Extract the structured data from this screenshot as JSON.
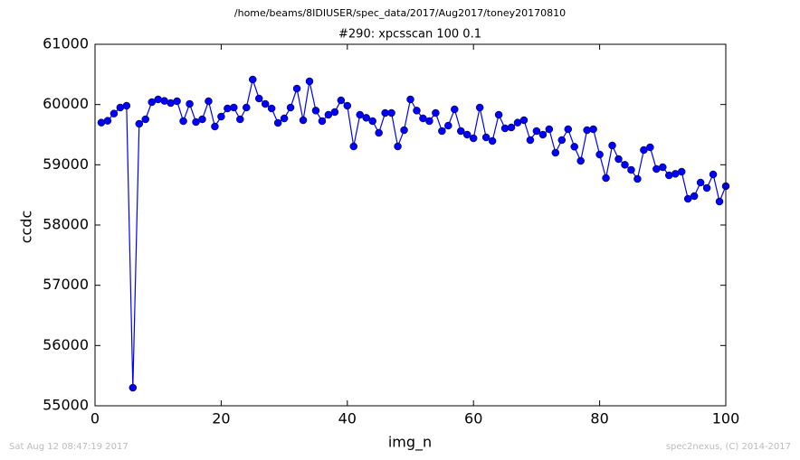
{
  "chart_data": {
    "type": "line",
    "title": "/home/beams/8IDIUSER/spec_data/2017/Aug2017/toney20170810",
    "subtitle": "#290: xpcsscan 100 0.1",
    "x_label": "img_n",
    "y_label": "ccdc",
    "timestamp": "Sat Aug 12 08:47:19 2017",
    "credit": "spec2nexus, (C) 2014-2017",
    "xlim": [
      0,
      100
    ],
    "xticks": [
      0,
      20,
      40,
      60,
      80,
      100
    ],
    "ylim": [
      55000,
      61000
    ],
    "yticks": [
      55000,
      56000,
      57000,
      58000,
      59000,
      60000,
      61000
    ],
    "grid": false,
    "x": [
      1,
      2,
      3,
      4,
      5,
      6,
      7,
      8,
      9,
      10,
      11,
      12,
      13,
      14,
      15,
      16,
      17,
      18,
      19,
      20,
      21,
      22,
      23,
      24,
      25,
      26,
      27,
      28,
      29,
      30,
      31,
      32,
      33,
      34,
      35,
      36,
      37,
      38,
      39,
      40,
      41,
      42,
      43,
      44,
      45,
      46,
      47,
      48,
      49,
      50,
      51,
      52,
      53,
      54,
      55,
      56,
      57,
      58,
      59,
      60,
      61,
      62,
      63,
      64,
      65,
      66,
      67,
      68,
      69,
      70,
      71,
      72,
      73,
      74,
      75,
      76,
      77,
      78,
      79,
      80,
      81,
      82,
      83,
      84,
      85,
      86,
      87,
      88,
      89,
      90,
      91,
      92,
      93,
      94,
      95,
      96,
      97,
      98,
      99,
      100
    ],
    "series": [
      {
        "name": "ccdc",
        "color": "#0000ff",
        "values": [
          59700,
          59730,
          59850,
          59950,
          59980,
          55300,
          59680,
          59755,
          60040,
          60085,
          60060,
          60025,
          60055,
          59725,
          60010,
          59710,
          59755,
          60055,
          59635,
          59800,
          59935,
          59950,
          59755,
          59950,
          60415,
          60100,
          60010,
          59935,
          59695,
          59770,
          59950,
          60265,
          59740,
          60385,
          59900,
          59725,
          59830,
          59875,
          60070,
          59980,
          59305,
          59830,
          59780,
          59725,
          59530,
          59860,
          59860,
          59305,
          59575,
          60085,
          59900,
          59770,
          59725,
          59860,
          59560,
          59650,
          59920,
          59560,
          59500,
          59440,
          59950,
          59455,
          59395,
          59830,
          59605,
          59620,
          59700,
          59740,
          59410,
          59560,
          59500,
          59590,
          59200,
          59410,
          59590,
          59300,
          59065,
          59575,
          59590,
          59170,
          58780,
          59320,
          59095,
          59000,
          58915,
          58765,
          59245,
          59290,
          58930,
          58960,
          58825,
          58850,
          58885,
          58435,
          58480,
          58705,
          58615,
          58840,
          58390,
          58645
        ]
      }
    ]
  }
}
